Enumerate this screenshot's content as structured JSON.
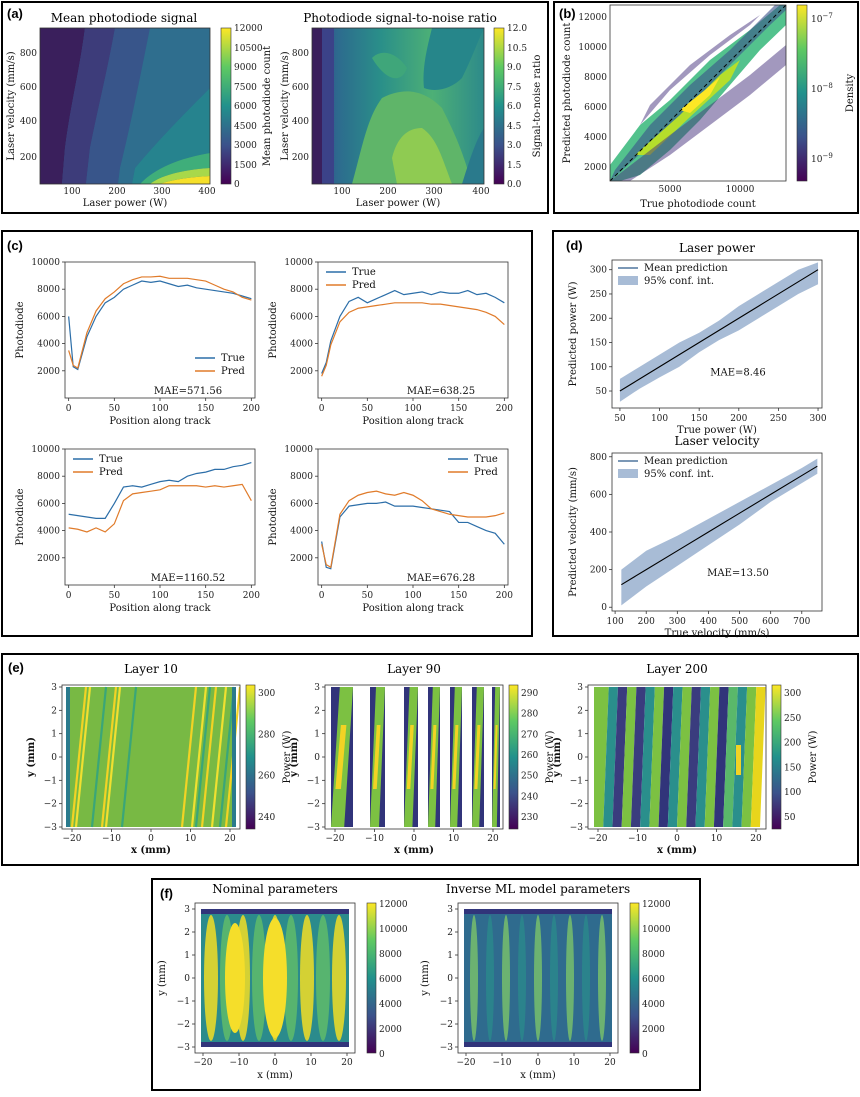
{
  "panels": {
    "a": {
      "label": "(a)",
      "left": {
        "title": "Mean photodiode signal",
        "xlabel": "Laser power (W)",
        "ylabel": "Laser velocity (mm/s)",
        "xticks": [
          "100",
          "200",
          "300",
          "400"
        ],
        "yticks": [
          "200",
          "400",
          "600",
          "800"
        ],
        "colorbar_label": "Mean photodiode count",
        "colorbar_ticks": [
          "0",
          "1500",
          "3000",
          "4500",
          "6000",
          "7500",
          "9000",
          "10500",
          "12000"
        ]
      },
      "right": {
        "title": "Photodiode signal-to-noise ratio",
        "xlabel": "Laser power (W)",
        "ylabel": "Laser velocity (mm/s)",
        "xticks": [
          "100",
          "200",
          "300",
          "400"
        ],
        "yticks": [
          "200",
          "400",
          "600",
          "800"
        ],
        "colorbar_label": "Signal-to-noise ratio",
        "colorbar_ticks": [
          "0.0",
          "1.5",
          "3.0",
          "4.5",
          "6.0",
          "7.5",
          "9.0",
          "10.5",
          "12.0"
        ]
      }
    },
    "b": {
      "label": "(b)",
      "xlabel": "True photodiode count",
      "ylabel": "Predicted photodiode count",
      "xticks": [
        "5000",
        "10000"
      ],
      "yticks": [
        "2000",
        "4000",
        "6000",
        "8000",
        "10000",
        "12000"
      ],
      "colorbar_label": "Density",
      "colorbar_ticks": [
        "10",
        "10",
        "10"
      ],
      "colorbar_exps": [
        "−7",
        "−8",
        "−9"
      ]
    },
    "c": {
      "label": "(c)",
      "xlabel": "Position along track",
      "ylabel": "Photodiode",
      "legend_true": "True",
      "legend_pred": "Pred",
      "xticks": [
        "0",
        "50",
        "100",
        "150",
        "200"
      ],
      "yticks": [
        "2000",
        "4000",
        "6000",
        "8000",
        "10000"
      ],
      "maes": [
        "MAE=571.56",
        "MAE=638.25",
        "MAE=1160.52",
        "MAE=676.28"
      ]
    },
    "d": {
      "label": "(d)",
      "top": {
        "title": "Laser power",
        "xlabel": "True power (W)",
        "ylabel": "Predicted power (W)",
        "xticks": [
          "50",
          "100",
          "150",
          "200",
          "250",
          "300"
        ],
        "yticks": [
          "50",
          "100",
          "150",
          "200",
          "250",
          "300"
        ],
        "mae": "MAE=8.46",
        "legend_mean": "Mean prediction",
        "legend_ci": "95% conf. int."
      },
      "bottom": {
        "title": "Laser velocity",
        "xlabel": "True velocity (mm/s)",
        "ylabel": "Predicted velocity (mm/s)",
        "xticks": [
          "100",
          "200",
          "300",
          "400",
          "500",
          "600",
          "700"
        ],
        "yticks": [
          "0",
          "200",
          "400",
          "600",
          "800"
        ],
        "mae": "MAE=13.50",
        "legend_mean": "Mean prediction",
        "legend_ci": "95% conf. int."
      }
    },
    "e": {
      "label": "(e)",
      "xlabel": "x (mm)",
      "ylabel": "y (mm)",
      "xticks": [
        "−20",
        "−10",
        "0",
        "10",
        "20"
      ],
      "yticks": [
        "−3",
        "−2",
        "−1",
        "0",
        "1",
        "2",
        "3"
      ],
      "colorbar_label": "Power (W)",
      "layers": [
        {
          "title": "Layer 10",
          "cticks": [
            "300",
            "280",
            "260",
            "240"
          ]
        },
        {
          "title": "Layer 90",
          "cticks": [
            "290",
            "280",
            "270",
            "260",
            "250",
            "240",
            "230"
          ]
        },
        {
          "title": "Layer 200",
          "cticks": [
            "300",
            "250",
            "200",
            "150",
            "100",
            "50"
          ]
        }
      ]
    },
    "f": {
      "label": "(f)",
      "xlabel": "x (mm)",
      "ylabel": "y (mm)",
      "xticks": [
        "−20",
        "−10",
        "0",
        "10",
        "20"
      ],
      "yticks": [
        "−3",
        "−2",
        "−1",
        "0",
        "1",
        "2",
        "3"
      ],
      "cticks": [
        "12000",
        "10000",
        "8000",
        "6000",
        "4000",
        "2000",
        "0"
      ],
      "left_title": "Nominal parameters",
      "right_title": "Inverse ML model parameters"
    }
  },
  "colors": {
    "true": "#2c6ea8",
    "pred": "#e07b2a",
    "ci": "#a8bcd6"
  },
  "chart_data": [
    {
      "type": "heatmap",
      "title": "Mean photodiode signal",
      "xlabel": "Laser power (W)",
      "ylabel": "Laser velocity (mm/s)",
      "xlim": [
        40,
        400
      ],
      "ylim": [
        40,
        960
      ],
      "clim": [
        0,
        12000
      ]
    },
    {
      "type": "heatmap",
      "title": "Photodiode signal-to-noise ratio",
      "xlabel": "Laser power (W)",
      "ylabel": "Laser velocity (mm/s)",
      "xlim": [
        40,
        400
      ],
      "ylim": [
        40,
        960
      ],
      "clim": [
        0,
        12
      ]
    },
    {
      "type": "heatmap",
      "title": "Density",
      "xlabel": "True photodiode count",
      "ylabel": "Predicted photodiode count",
      "xlim": [
        1000,
        12500
      ],
      "ylim": [
        1000,
        12500
      ]
    },
    {
      "type": "line",
      "xlabel": "Position along track",
      "ylabel": "Photodiode",
      "ylim": [
        0,
        10000
      ],
      "mae": 571.56,
      "x": [
        0,
        5,
        10,
        20,
        30,
        40,
        50,
        60,
        70,
        80,
        90,
        100,
        110,
        120,
        130,
        140,
        150,
        160,
        170,
        180,
        190,
        200
      ],
      "series": [
        {
          "name": "True",
          "values": [
            6000,
            2300,
            2100,
            4500,
            6000,
            7000,
            7400,
            8000,
            8300,
            8600,
            8500,
            8600,
            8400,
            8200,
            8300,
            8100,
            8000,
            7900,
            7800,
            7700,
            7500,
            7300
          ]
        },
        {
          "name": "Pred",
          "values": [
            3500,
            2400,
            2200,
            4800,
            6400,
            7300,
            7800,
            8400,
            8700,
            8900,
            8900,
            8950,
            8800,
            8800,
            8800,
            8700,
            8600,
            8300,
            8000,
            7800,
            7400,
            7200
          ]
        }
      ]
    },
    {
      "type": "line",
      "xlabel": "Position along track",
      "ylabel": "Photodiode",
      "ylim": [
        0,
        10000
      ],
      "mae": 638.25,
      "x": [
        0,
        5,
        10,
        20,
        30,
        40,
        50,
        60,
        70,
        80,
        90,
        100,
        110,
        120,
        130,
        140,
        150,
        160,
        170,
        180,
        190,
        200
      ],
      "series": [
        {
          "name": "True",
          "values": [
            1800,
            2600,
            4200,
            6000,
            7100,
            7400,
            7000,
            7300,
            7600,
            7900,
            7600,
            7700,
            7800,
            7600,
            7800,
            7700,
            7700,
            7900,
            7600,
            7700,
            7400,
            7000
          ]
        },
        {
          "name": "Pred",
          "values": [
            1600,
            2400,
            3900,
            5600,
            6300,
            6600,
            6700,
            6800,
            6900,
            7000,
            7000,
            7000,
            7000,
            6900,
            6900,
            6800,
            6700,
            6600,
            6500,
            6300,
            6000,
            5400
          ]
        }
      ]
    },
    {
      "type": "line",
      "xlabel": "Position along track",
      "ylabel": "Photodiode",
      "ylim": [
        0,
        10000
      ],
      "mae": 1160.52,
      "x": [
        0,
        10,
        20,
        30,
        40,
        50,
        60,
        70,
        80,
        90,
        100,
        110,
        120,
        130,
        140,
        150,
        160,
        170,
        180,
        190,
        200
      ],
      "series": [
        {
          "name": "True",
          "values": [
            5200,
            5100,
            5000,
            4900,
            4900,
            6000,
            7200,
            7300,
            7200,
            7400,
            7600,
            7700,
            7600,
            8000,
            8200,
            8300,
            8500,
            8500,
            8700,
            8800,
            9000
          ]
        },
        {
          "name": "Pred",
          "values": [
            4200,
            4100,
            3900,
            4200,
            3900,
            4500,
            6200,
            6700,
            6800,
            6900,
            7000,
            7300,
            7300,
            7300,
            7300,
            7200,
            7300,
            7200,
            7300,
            7400,
            6200
          ]
        }
      ]
    },
    {
      "type": "line",
      "xlabel": "Position along track",
      "ylabel": "Photodiode",
      "ylim": [
        0,
        10000
      ],
      "mae": 676.28,
      "x": [
        0,
        5,
        10,
        20,
        30,
        40,
        50,
        60,
        70,
        80,
        90,
        100,
        110,
        120,
        130,
        140,
        150,
        160,
        170,
        180,
        190,
        200
      ],
      "series": [
        {
          "name": "True",
          "values": [
            3200,
            1300,
            1200,
            5000,
            5800,
            5900,
            6000,
            6000,
            6100,
            5800,
            5800,
            5800,
            5700,
            5600,
            5500,
            5400,
            4600,
            4600,
            4300,
            4000,
            3800,
            3000
          ]
        },
        {
          "name": "Pred",
          "values": [
            3000,
            1500,
            1300,
            5200,
            6200,
            6600,
            6800,
            6900,
            6700,
            6600,
            6800,
            6600,
            6200,
            5600,
            5400,
            5200,
            5100,
            5000,
            5000,
            5000,
            5100,
            5300
          ]
        }
      ]
    },
    {
      "type": "line",
      "title": "Laser power",
      "xlabel": "True power (W)",
      "ylabel": "Predicted power (W)",
      "mae": 8.46,
      "x": [
        50,
        75,
        100,
        125,
        150,
        175,
        200,
        225,
        250,
        275,
        300
      ],
      "series": [
        {
          "name": "Mean prediction",
          "values": [
            50,
            75,
            100,
            125,
            150,
            175,
            200,
            225,
            250,
            275,
            300
          ]
        }
      ],
      "ci_low": [
        28,
        55,
        78,
        100,
        130,
        155,
        175,
        200,
        225,
        250,
        270
      ],
      "ci_high": [
        75,
        100,
        125,
        150,
        170,
        195,
        225,
        250,
        275,
        300,
        315
      ]
    },
    {
      "type": "line",
      "title": "Laser velocity",
      "xlabel": "True velocity (mm/s)",
      "ylabel": "Predicted velocity (mm/s)",
      "mae": 13.5,
      "x": [
        120,
        200,
        300,
        400,
        500,
        600,
        700,
        750
      ],
      "series": [
        {
          "name": "Mean prediction",
          "values": [
            120,
            200,
            300,
            400,
            500,
            600,
            700,
            750
          ]
        }
      ],
      "ci_low": [
        10,
        110,
        220,
        330,
        440,
        560,
        660,
        710
      ],
      "ci_high": [
        200,
        300,
        380,
        470,
        560,
        650,
        740,
        790
      ]
    },
    {
      "type": "heatmap",
      "title": "Layer 10",
      "xlabel": "x (mm)",
      "ylabel": "y (mm)",
      "clim": [
        230,
        305
      ]
    },
    {
      "type": "heatmap",
      "title": "Layer 90",
      "xlabel": "x (mm)",
      "ylabel": "y (mm)",
      "clim": [
        228,
        290
      ]
    },
    {
      "type": "heatmap",
      "title": "Layer 200",
      "xlabel": "x (mm)",
      "ylabel": "y (mm)",
      "clim": [
        40,
        310
      ]
    },
    {
      "type": "heatmap",
      "title": "Nominal parameters",
      "xlabel": "x (mm)",
      "ylabel": "y (mm)",
      "clim": [
        0,
        12000
      ]
    },
    {
      "type": "heatmap",
      "title": "Inverse ML model parameters",
      "xlabel": "x (mm)",
      "ylabel": "y (mm)",
      "clim": [
        0,
        12000
      ]
    }
  ]
}
